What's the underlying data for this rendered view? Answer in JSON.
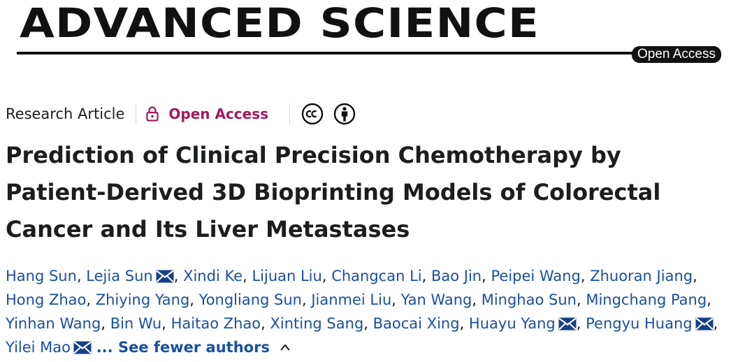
{
  "masthead": {
    "journal": "ADVANCED SCIENCE",
    "badge": "Open Access"
  },
  "meta": {
    "article_type": "Research Article",
    "open_access": "Open Access",
    "icons": [
      "lock-icon",
      "creative-commons-icon",
      "attribution-icon"
    ],
    "accent_color": "#a3195b"
  },
  "title": "Prediction of Clinical Precision Chemotherapy by Patient-Derived 3D Bioprinting Models of Colorectal Cancer and Its Liver Metastases",
  "authors": {
    "names": [
      "Hang Sun",
      "Lejia Sun",
      "Xindi Ke",
      "Lijuan Liu",
      "Changcan Li",
      "Bao Jin",
      "Peipei Wang",
      "Zhuoran Jiang",
      "Hong Zhao",
      "Zhiying Yang",
      "Yongliang Sun",
      "Jianmei Liu",
      "Yan Wang",
      "Minghao Sun",
      "Mingchang Pang",
      "Yinhan Wang",
      "Bin Wu",
      "Haitao Zhao",
      "Xinting Sang",
      "Baocai Xing",
      "Huayu Yang",
      "Pengyu Huang",
      "Yilei Mao"
    ],
    "corresponding": [
      "Lejia Sun",
      "Huayu Yang",
      "Pengyu Huang",
      "Yilei Mao"
    ],
    "toggle_label": "... See fewer authors",
    "link_color": "#1a4fa0"
  }
}
